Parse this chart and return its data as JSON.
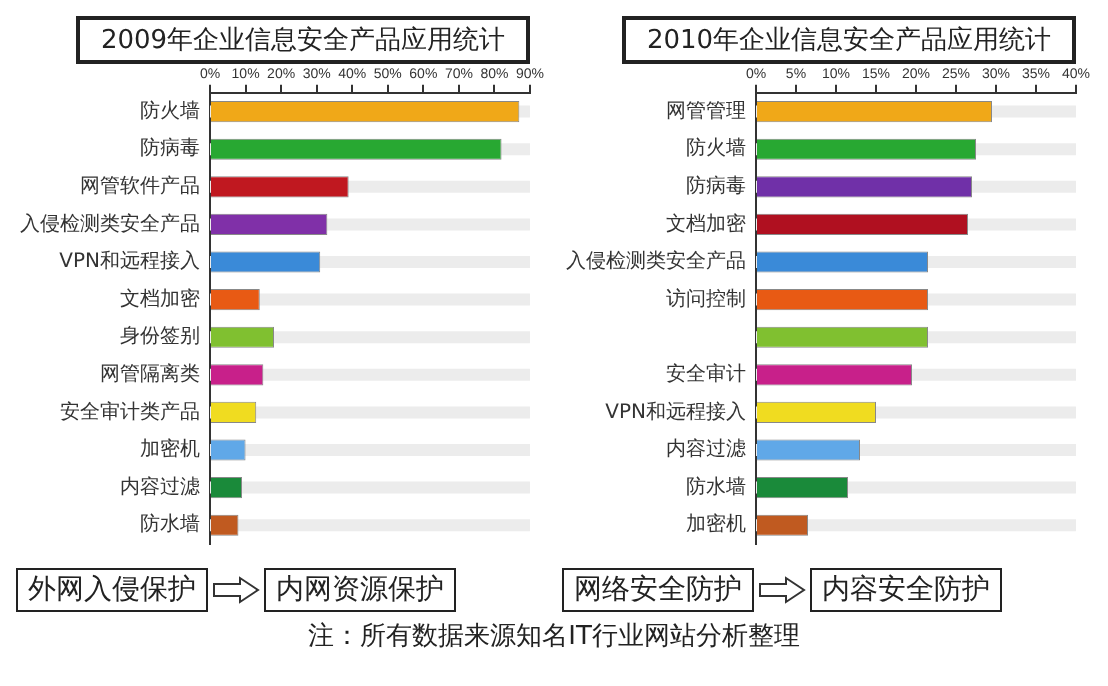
{
  "chart_data": [
    {
      "type": "bar",
      "orientation": "horizontal",
      "title": "2009年企业信息安全产品应用统计",
      "categories": [
        "防火墙",
        "防病毒",
        "网管软件产品",
        "入侵检测类安全产品",
        "VPN和远程接入",
        "文档加密",
        "身份签别",
        "网管隔离类",
        "安全审计类产品",
        "加密机",
        "内容过滤",
        "防水墙"
      ],
      "values": [
        87,
        82,
        39,
        33,
        31,
        14,
        18,
        15,
        13,
        10,
        9,
        8
      ],
      "colors": [
        "#f0a818",
        "#28a832",
        "#c01820",
        "#8030a8",
        "#3a8ad8",
        "#e85a14",
        "#80c030",
        "#c8208a",
        "#f0dc20",
        "#60a8e8",
        "#1a8a3a",
        "#c05a20"
      ],
      "xlim": [
        0,
        90
      ],
      "xticks": [
        {
          "value": 0,
          "label": "0%"
        },
        {
          "value": 10,
          "label": "10%"
        },
        {
          "value": 20,
          "label": "20%"
        },
        {
          "value": 30,
          "label": "30%"
        },
        {
          "value": 40,
          "label": "40%"
        },
        {
          "value": 50,
          "label": "50%"
        },
        {
          "value": 60,
          "label": "60%"
        },
        {
          "value": 70,
          "label": "70%"
        },
        {
          "value": 80,
          "label": "80%"
        },
        {
          "value": 90,
          "label": "90%"
        }
      ],
      "grid": false,
      "legend": false,
      "annotations": [
        "外网入侵保护",
        "内网资源保护",
        "注：所有数据来源知名IT行业网站分析整理"
      ]
    },
    {
      "type": "bar",
      "orientation": "horizontal",
      "title": "2010年企业信息安全产品应用统计",
      "categories": [
        "网管管理",
        "防火墙",
        "防病毒",
        "文档加密",
        "入侵检测类安全产品",
        "访问控制",
        null,
        "安全审计",
        "VPN和远程接入",
        "内容过滤",
        "防水墙",
        "加密机"
      ],
      "values": [
        29.5,
        27.5,
        27,
        26.5,
        21.5,
        21.5,
        21.5,
        19.5,
        15,
        13,
        11.5,
        6.5
      ],
      "colors": [
        "#f0a818",
        "#28a832",
        "#7030a8",
        "#b01020",
        "#3a8ad8",
        "#e85a14",
        "#80c030",
        "#c8208a",
        "#f0dc20",
        "#60a8e8",
        "#1a8a3a",
        "#c05a20"
      ],
      "xlim": [
        0,
        40
      ],
      "xticks": [
        {
          "value": 0,
          "label": "0%"
        },
        {
          "value": 5,
          "label": "5%"
        },
        {
          "value": 10,
          "label": "10%"
        },
        {
          "value": 15,
          "label": "15%"
        },
        {
          "value": 20,
          "label": "20%"
        },
        {
          "value": 25,
          "label": "25%"
        },
        {
          "value": 30,
          "label": "30%"
        },
        {
          "value": 35,
          "label": "35%"
        },
        {
          "value": 40,
          "label": "40%"
        }
      ],
      "grid": false,
      "legend": false,
      "annotations": [
        "网络安全防护",
        "内容安全防护"
      ]
    }
  ]
}
